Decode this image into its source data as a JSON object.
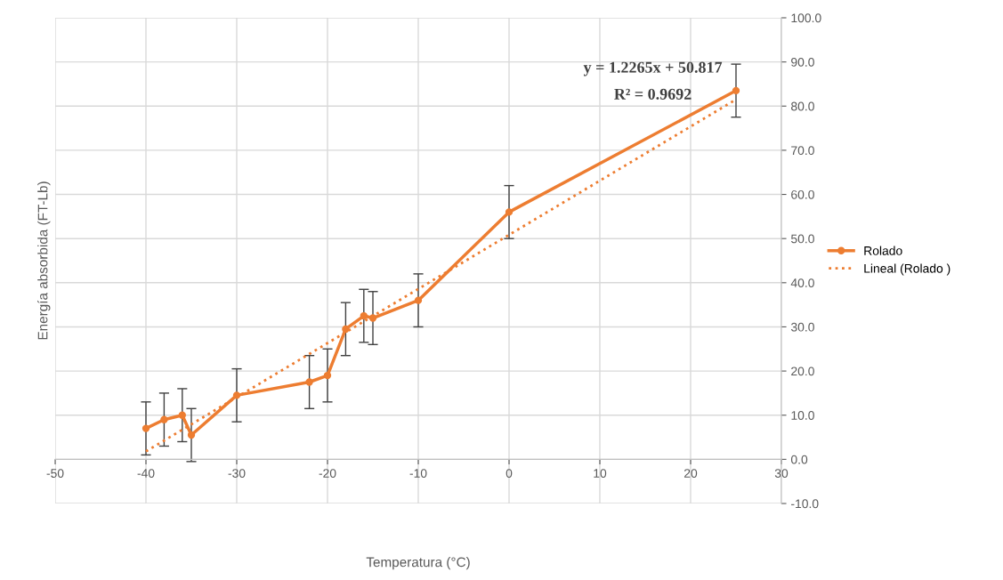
{
  "chart_data": {
    "type": "line",
    "xlabel": "Temperatura (°C)",
    "ylabel": "Energía absorbida (FT-Lb)",
    "xlim": [
      -50,
      30
    ],
    "xticks": [
      -50,
      -40,
      -30,
      -20,
      -10,
      0,
      10,
      20,
      30
    ],
    "ylim": [
      -10,
      100
    ],
    "yticks": [
      {
        "value": -10,
        "label": "-10.0"
      },
      {
        "value": 0,
        "label": "0.0"
      },
      {
        "value": 10,
        "label": "10.0"
      },
      {
        "value": 20,
        "label": "20.0"
      },
      {
        "value": 30,
        "label": "30.0"
      },
      {
        "value": 40,
        "label": "40.0"
      },
      {
        "value": 50,
        "label": "50.0"
      },
      {
        "value": 60,
        "label": "60.0"
      },
      {
        "value": 70,
        "label": "70.0"
      },
      {
        "value": 80,
        "label": "80.0"
      },
      {
        "value": 90,
        "label": "90.0"
      },
      {
        "value": 100,
        "label": "100.0"
      }
    ],
    "grid": true,
    "legend": "right",
    "series": [
      {
        "name": "Rolado",
        "color": "#ed7d31",
        "marker": "circle",
        "line_style": "solid",
        "x": [
          -40,
          -38,
          -36,
          -35,
          -30,
          -22,
          -20,
          -18,
          -16,
          -15,
          -10,
          0,
          25
        ],
        "values": [
          7,
          9,
          10,
          5.5,
          14.5,
          17.5,
          19,
          29.5,
          32.5,
          32,
          36,
          56,
          83.5
        ],
        "errors": [
          6,
          6,
          6,
          6,
          6,
          6,
          6,
          6,
          6,
          6,
          6,
          6,
          6
        ]
      },
      {
        "name": "Lineal (Rolado )",
        "color": "#ed7d31",
        "marker": "none",
        "line_style": "dotted",
        "x": [
          -40,
          25
        ],
        "values": [
          1.8,
          81.5
        ]
      }
    ],
    "annotations": [
      "y = 1.2265x + 50.817",
      "R² = 0.9692"
    ]
  }
}
